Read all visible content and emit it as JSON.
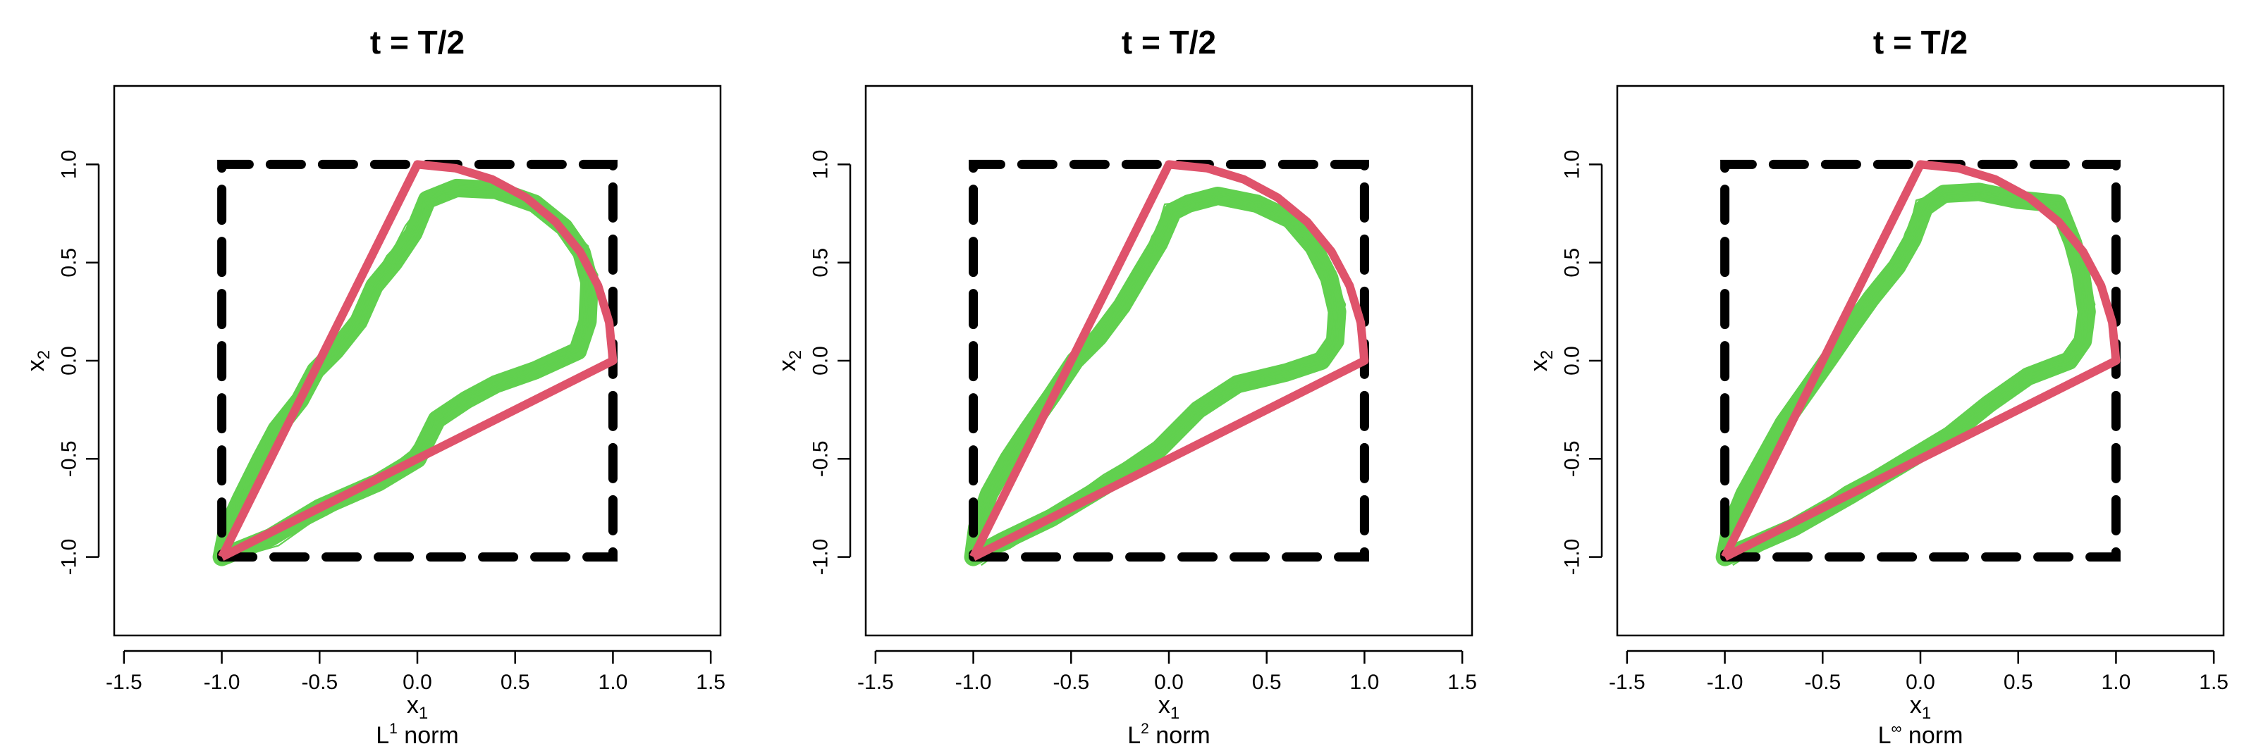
{
  "chart_data": [
    {
      "type": "line",
      "title": "t = T/2",
      "xlabel": "x",
      "xlabel_sub": "1",
      "ylabel": "x",
      "ylabel_sub": "2",
      "norm_label_pre": "L",
      "norm_label_sup": "1",
      "norm_label_post": " norm",
      "xlim": [
        -1.55,
        1.55
      ],
      "ylim": [
        -1.4,
        1.4
      ],
      "xticks": [
        -1.5,
        -1.0,
        -0.5,
        0.0,
        0.5,
        1.0,
        1.5
      ],
      "yticks": [
        -1.0,
        -0.5,
        0.0,
        0.5,
        1.0
      ],
      "xtick_labels": [
        "-1.5",
        "-1.0",
        "-0.5",
        "0.0",
        "0.5",
        "1.0",
        "1.5"
      ],
      "ytick_labels": [
        "-1.0",
        "-0.5",
        "0.0",
        "0.5",
        "1.0"
      ],
      "grid": false,
      "series": [
        {
          "role": "trajectories",
          "color": "#61D04F",
          "points": [
            [
              -1.0,
              -1.0
            ],
            [
              -0.97,
              -0.85
            ],
            [
              -0.9,
              -0.7
            ],
            [
              -0.8,
              -0.5
            ],
            [
              -0.72,
              -0.35
            ],
            [
              -0.6,
              -0.2
            ],
            [
              -0.52,
              -0.05
            ],
            [
              -0.42,
              0.05
            ],
            [
              -0.3,
              0.2
            ],
            [
              -0.22,
              0.38
            ],
            [
              -0.12,
              0.5
            ],
            [
              -0.02,
              0.65
            ],
            [
              0.05,
              0.82
            ],
            [
              0.2,
              0.88
            ],
            [
              0.4,
              0.87
            ],
            [
              0.6,
              0.8
            ],
            [
              0.75,
              0.68
            ],
            [
              0.84,
              0.55
            ],
            [
              0.88,
              0.4
            ],
            [
              0.87,
              0.2
            ],
            [
              0.82,
              0.05
            ],
            [
              0.6,
              -0.05
            ],
            [
              0.4,
              -0.12
            ],
            [
              0.25,
              -0.2
            ],
            [
              0.1,
              -0.3
            ],
            [
              0.0,
              -0.5
            ],
            [
              -0.2,
              -0.62
            ],
            [
              -0.5,
              -0.75
            ],
            [
              -0.75,
              -0.9
            ],
            [
              -1.0,
              -1.0
            ]
          ]
        },
        {
          "role": "boundary",
          "color": "#DF536B",
          "points": [
            [
              -1.0,
              -1.0
            ],
            [
              0.0,
              1.0
            ],
            [
              0.1951,
              0.9808
            ],
            [
              0.3827,
              0.9239
            ],
            [
              0.5556,
              0.8315
            ],
            [
              0.7071,
              0.7071
            ],
            [
              0.8315,
              0.5556
            ],
            [
              0.9239,
              0.3827
            ],
            [
              0.9808,
              0.1951
            ],
            [
              1.0,
              0.0
            ],
            [
              -1.0,
              -1.0
            ]
          ]
        },
        {
          "role": "box",
          "color": "#000000",
          "dash": true,
          "points": [
            [
              -1.0,
              -1.0
            ],
            [
              1.0,
              -1.0
            ],
            [
              1.0,
              1.0
            ],
            [
              -1.0,
              1.0
            ],
            [
              -1.0,
              -1.0
            ]
          ]
        }
      ]
    },
    {
      "type": "line",
      "title": "t = T/2",
      "xlabel": "x",
      "xlabel_sub": "1",
      "ylabel": "x",
      "ylabel_sub": "2",
      "norm_label_pre": "L",
      "norm_label_sup": "2",
      "norm_label_post": " norm",
      "xlim": [
        -1.55,
        1.55
      ],
      "ylim": [
        -1.4,
        1.4
      ],
      "xticks": [
        -1.5,
        -1.0,
        -0.5,
        0.0,
        0.5,
        1.0,
        1.5
      ],
      "yticks": [
        -1.0,
        -0.5,
        0.0,
        0.5,
        1.0
      ],
      "xtick_labels": [
        "-1.5",
        "-1.0",
        "-0.5",
        "0.0",
        "0.5",
        "1.0",
        "1.5"
      ],
      "ytick_labels": [
        "-1.0",
        "-0.5",
        "0.0",
        "0.5",
        "1.0"
      ],
      "grid": false,
      "series": [
        {
          "role": "trajectories",
          "color": "#61D04F",
          "points": [
            [
              -1.0,
              -1.0
            ],
            [
              -0.98,
              -0.85
            ],
            [
              -0.92,
              -0.68
            ],
            [
              -0.82,
              -0.5
            ],
            [
              -0.72,
              -0.35
            ],
            [
              -0.6,
              -0.18
            ],
            [
              -0.48,
              0.0
            ],
            [
              -0.36,
              0.12
            ],
            [
              -0.24,
              0.28
            ],
            [
              -0.14,
              0.45
            ],
            [
              -0.05,
              0.6
            ],
            [
              0.02,
              0.76
            ],
            [
              0.1,
              0.8
            ],
            [
              0.25,
              0.84
            ],
            [
              0.45,
              0.8
            ],
            [
              0.62,
              0.72
            ],
            [
              0.74,
              0.58
            ],
            [
              0.82,
              0.42
            ],
            [
              0.86,
              0.25
            ],
            [
              0.85,
              0.1
            ],
            [
              0.78,
              0.0
            ],
            [
              0.6,
              -0.06
            ],
            [
              0.35,
              -0.12
            ],
            [
              0.15,
              -0.25
            ],
            [
              -0.05,
              -0.45
            ],
            [
              -0.3,
              -0.62
            ],
            [
              -0.6,
              -0.8
            ],
            [
              -0.85,
              -0.92
            ],
            [
              -1.0,
              -1.0
            ]
          ]
        },
        {
          "role": "boundary",
          "color": "#DF536B",
          "points": [
            [
              -1.0,
              -1.0
            ],
            [
              0.0,
              1.0
            ],
            [
              0.1951,
              0.9808
            ],
            [
              0.3827,
              0.9239
            ],
            [
              0.5556,
              0.8315
            ],
            [
              0.7071,
              0.7071
            ],
            [
              0.8315,
              0.5556
            ],
            [
              0.9239,
              0.3827
            ],
            [
              0.9808,
              0.1951
            ],
            [
              1.0,
              0.0
            ],
            [
              -1.0,
              -1.0
            ]
          ]
        },
        {
          "role": "box",
          "color": "#000000",
          "dash": true,
          "points": [
            [
              -1.0,
              -1.0
            ],
            [
              1.0,
              -1.0
            ],
            [
              1.0,
              1.0
            ],
            [
              -1.0,
              1.0
            ],
            [
              -1.0,
              -1.0
            ]
          ]
        }
      ]
    },
    {
      "type": "line",
      "title": "t = T/2",
      "xlabel": "x",
      "xlabel_sub": "1",
      "ylabel": "x",
      "ylabel_sub": "2",
      "norm_label_pre": "L",
      "norm_label_sup": "∞",
      "norm_label_post": " norm",
      "xlim": [
        -1.55,
        1.55
      ],
      "ylim": [
        -1.4,
        1.4
      ],
      "xticks": [
        -1.5,
        -1.0,
        -0.5,
        0.0,
        0.5,
        1.0,
        1.5
      ],
      "yticks": [
        -1.0,
        -0.5,
        0.0,
        0.5,
        1.0
      ],
      "xtick_labels": [
        "-1.5",
        "-1.0",
        "-0.5",
        "0.0",
        "0.5",
        "1.0",
        "1.5"
      ],
      "ytick_labels": [
        "-1.0",
        "-0.5",
        "0.0",
        "0.5",
        "1.0"
      ],
      "grid": false,
      "series": [
        {
          "role": "trajectories",
          "color": "#61D04F",
          "points": [
            [
              -1.0,
              -1.0
            ],
            [
              -0.97,
              -0.85
            ],
            [
              -0.9,
              -0.68
            ],
            [
              -0.8,
              -0.5
            ],
            [
              -0.7,
              -0.32
            ],
            [
              -0.58,
              -0.15
            ],
            [
              -0.46,
              0.02
            ],
            [
              -0.35,
              0.18
            ],
            [
              -0.25,
              0.32
            ],
            [
              -0.12,
              0.48
            ],
            [
              -0.04,
              0.62
            ],
            [
              0.02,
              0.78
            ],
            [
              0.12,
              0.85
            ],
            [
              0.3,
              0.86
            ],
            [
              0.5,
              0.82
            ],
            [
              0.7,
              0.8
            ],
            [
              0.78,
              0.6
            ],
            [
              0.82,
              0.45
            ],
            [
              0.85,
              0.25
            ],
            [
              0.83,
              0.1
            ],
            [
              0.76,
              0.0
            ],
            [
              0.55,
              -0.08
            ],
            [
              0.35,
              -0.22
            ],
            [
              0.15,
              -0.38
            ],
            [
              -0.05,
              -0.5
            ],
            [
              -0.35,
              -0.68
            ],
            [
              -0.65,
              -0.85
            ],
            [
              -0.88,
              -0.95
            ],
            [
              -1.0,
              -1.0
            ]
          ]
        },
        {
          "role": "boundary",
          "color": "#DF536B",
          "points": [
            [
              -1.0,
              -1.0
            ],
            [
              0.0,
              1.0
            ],
            [
              0.1951,
              0.9808
            ],
            [
              0.3827,
              0.9239
            ],
            [
              0.5556,
              0.8315
            ],
            [
              0.7071,
              0.7071
            ],
            [
              0.8315,
              0.5556
            ],
            [
              0.9239,
              0.3827
            ],
            [
              0.9808,
              0.1951
            ],
            [
              1.0,
              0.0
            ],
            [
              -1.0,
              -1.0
            ]
          ]
        },
        {
          "role": "box",
          "color": "#000000",
          "dash": true,
          "points": [
            [
              -1.0,
              -1.0
            ],
            [
              1.0,
              -1.0
            ],
            [
              1.0,
              1.0
            ],
            [
              -1.0,
              1.0
            ],
            [
              -1.0,
              -1.0
            ]
          ]
        }
      ]
    }
  ]
}
